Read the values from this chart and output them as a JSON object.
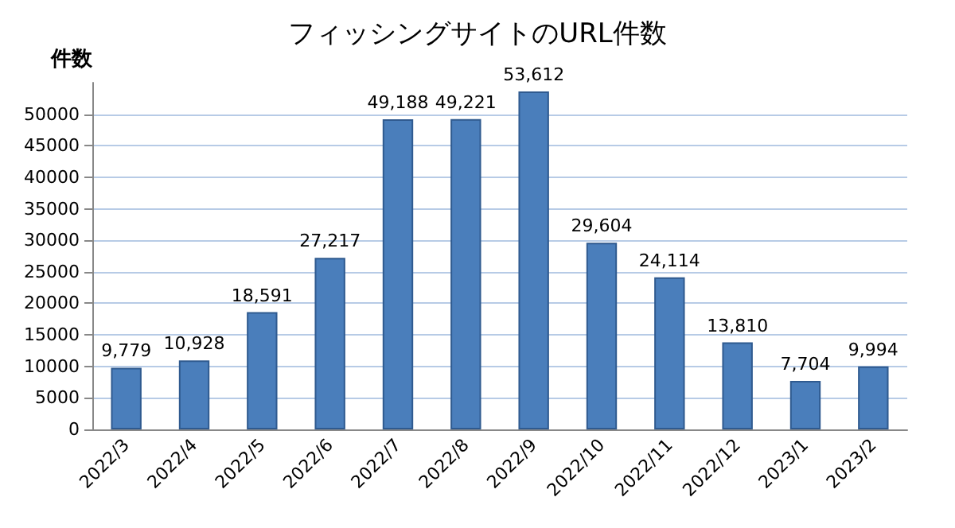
{
  "chart_data": {
    "type": "bar",
    "title": "フィッシングサイトのURL件数",
    "ylabel": "件数",
    "categories": [
      "2022/3",
      "2022/4",
      "2022/5",
      "2022/6",
      "2022/7",
      "2022/8",
      "2022/9",
      "2022/10",
      "2022/11",
      "2022/12",
      "2023/1",
      "2023/2"
    ],
    "values": [
      9779,
      10928,
      18591,
      27217,
      49188,
      49221,
      53612,
      29604,
      24114,
      13810,
      7704,
      9994
    ],
    "value_labels": [
      "9,779",
      "10,928",
      "18,591",
      "27,217",
      "49,188",
      "49,221",
      "53,612",
      "29,604",
      "24,114",
      "13,810",
      "7,704",
      "9,994"
    ],
    "color": "#4a7ebb",
    "ylim": [
      0,
      55000
    ],
    "yticks": [
      0,
      5000,
      10000,
      15000,
      20000,
      25000,
      30000,
      35000,
      40000,
      45000,
      50000
    ],
    "grid": "y"
  }
}
